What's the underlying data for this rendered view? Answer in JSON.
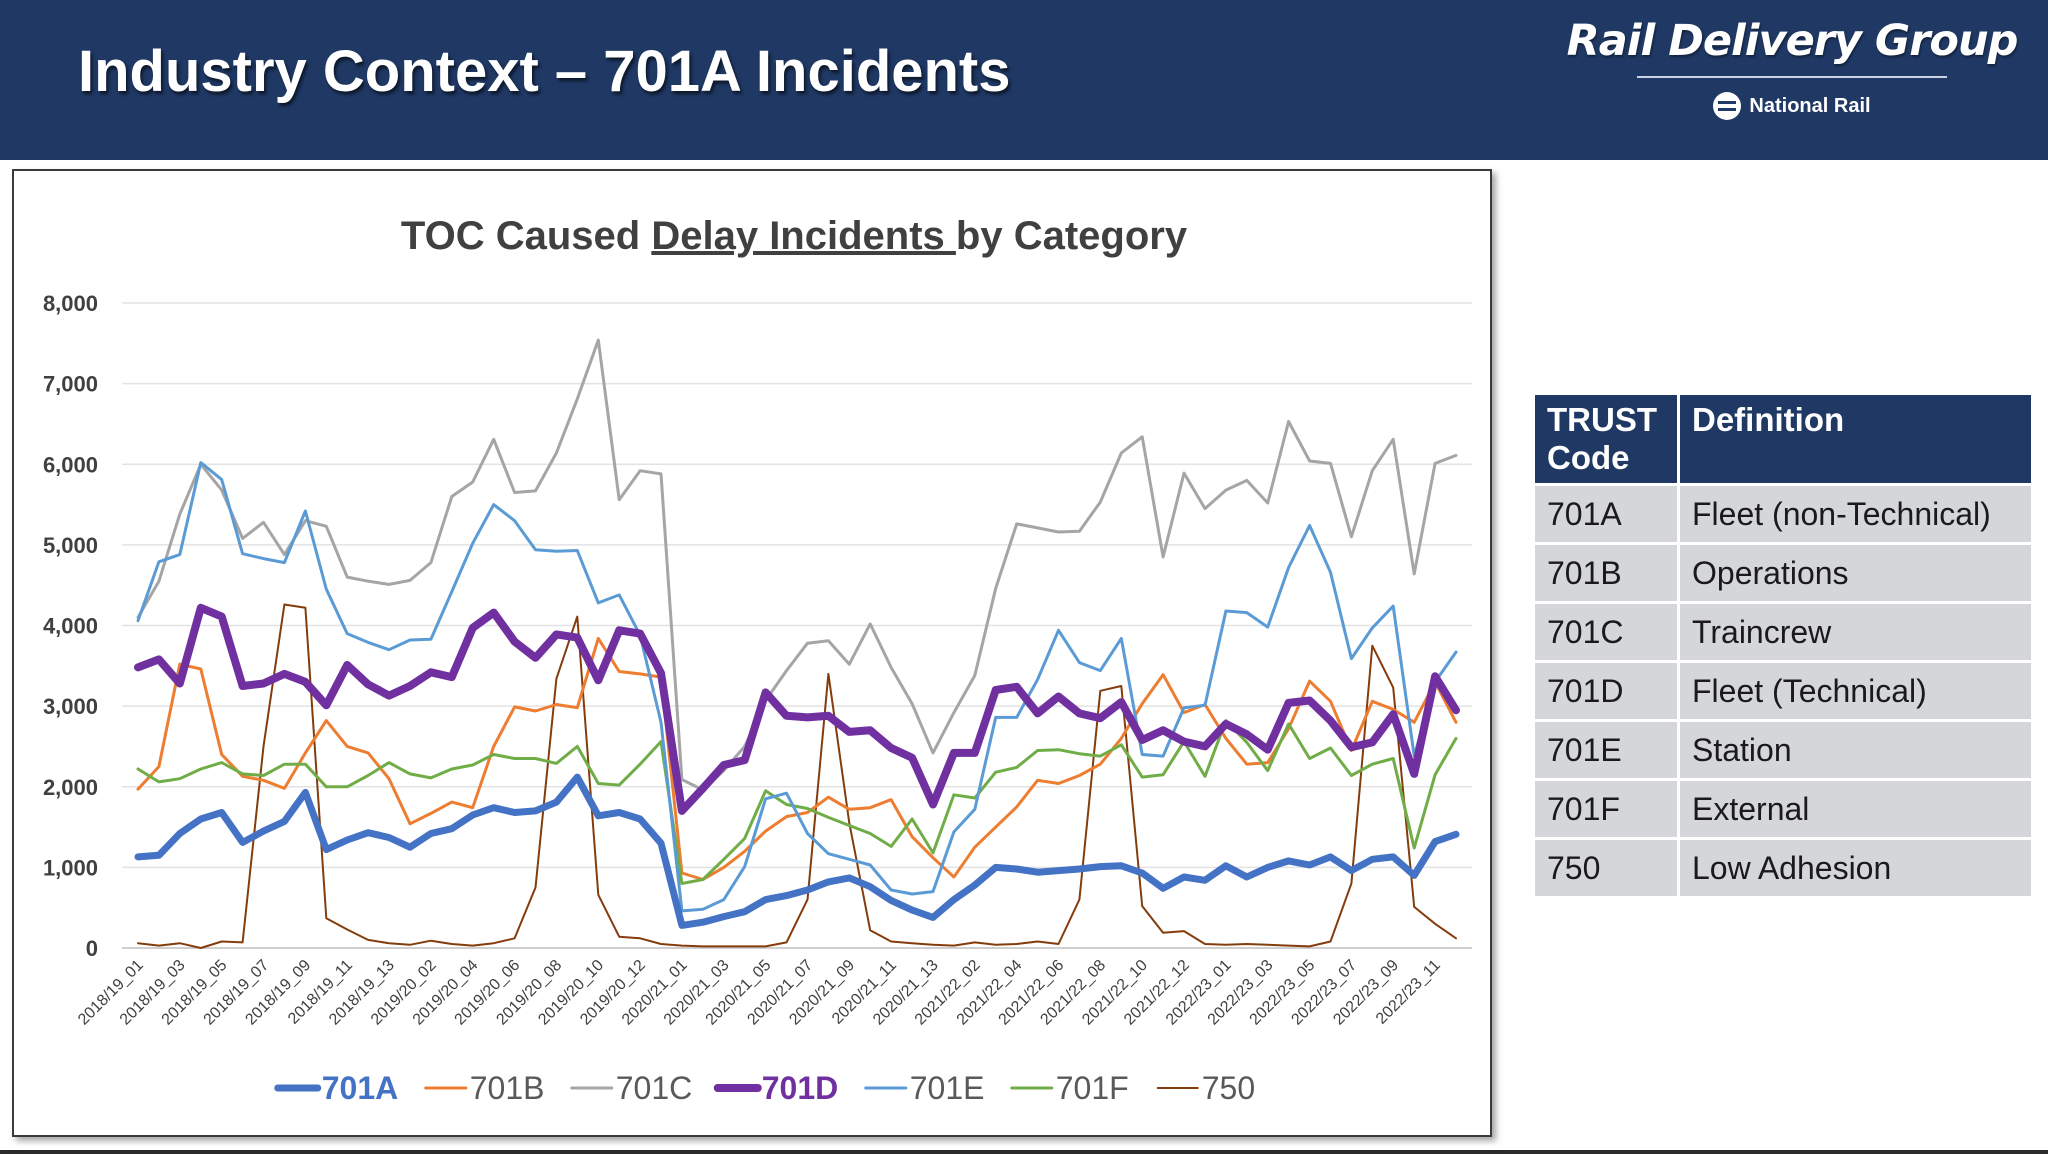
{
  "header": {
    "title": "Industry Context – 701A Incidents",
    "logo_main": "Rail Delivery Group",
    "logo_sub": "National Rail",
    "bg_color": "#1f3864"
  },
  "chart_data": {
    "type": "line",
    "title_prefix": "TOC Caused ",
    "title_underlined": "Delay Incidents ",
    "title_suffix": "by Category",
    "ylim": [
      0,
      8000
    ],
    "yticks": [
      "0",
      "1,000",
      "2,000",
      "3,000",
      "4,000",
      "5,000",
      "6,000",
      "7,000",
      "8,000"
    ],
    "grid": true,
    "legend_position": "bottom",
    "x_tick_labels": [
      "2018/19_01",
      "2018/19_03",
      "2018/19_05",
      "2018/19_07",
      "2018/19_09",
      "2018/19_11",
      "2018/19_13",
      "2019/20_02",
      "2019/20_04",
      "2019/20_06",
      "2019/20_08",
      "2019/20_10",
      "2019/20_12",
      "2020/21_01",
      "2020/21_03",
      "2020/21_05",
      "2020/21_07",
      "2020/21_09",
      "2020/21_11",
      "2020/21_13",
      "2021/22_02",
      "2021/22_04",
      "2021/22_06",
      "2021/22_08",
      "2021/22_10",
      "2021/22_12",
      "2022/23_01",
      "2022/23_03",
      "2022/23_05",
      "2022/23_07",
      "2022/23_09",
      "2022/23_11"
    ],
    "series": [
      {
        "name": "701A",
        "color": "#4472c4",
        "width": 7,
        "bold": true,
        "values": [
          1130,
          1150,
          1420,
          1600,
          1680,
          1310,
          1450,
          1570,
          1930,
          1220,
          1340,
          1430,
          1370,
          1250,
          1420,
          1480,
          1650,
          1740,
          1680,
          1700,
          1810,
          2120,
          1640,
          1680,
          1600,
          1300,
          280,
          320,
          390,
          450,
          600,
          650,
          720,
          820,
          870,
          760,
          590,
          470,
          380,
          600,
          780,
          1000,
          980,
          940,
          960,
          980,
          1010,
          1020,
          930,
          740,
          880,
          840,
          1020,
          880,
          1000,
          1080,
          1030,
          1130,
          960,
          1100,
          1130,
          900,
          1320,
          1410
        ]
      },
      {
        "name": "701B",
        "color": "#ed7d31",
        "width": 3,
        "bold": false,
        "values": [
          1970,
          2250,
          3520,
          3460,
          2400,
          2130,
          2080,
          1980,
          2420,
          2820,
          2500,
          2420,
          2100,
          1540,
          1670,
          1810,
          1740,
          2500,
          2990,
          2940,
          3020,
          2980,
          3840,
          3430,
          3400,
          3360,
          930,
          850,
          1000,
          1200,
          1450,
          1630,
          1680,
          1870,
          1720,
          1740,
          1840,
          1380,
          1120,
          880,
          1250,
          1500,
          1750,
          2080,
          2040,
          2140,
          2280,
          2600,
          3030,
          3390,
          2920,
          3020,
          2600,
          2280,
          2300,
          2720,
          3310,
          3060,
          2450,
          3060,
          2960,
          2800,
          3300,
          2800
        ]
      },
      {
        "name": "701C",
        "color": "#a5a5a5",
        "width": 3,
        "bold": false,
        "values": [
          4100,
          4550,
          5380,
          6000,
          5680,
          5080,
          5280,
          4880,
          5300,
          5230,
          4600,
          4550,
          4510,
          4560,
          4780,
          5600,
          5780,
          6310,
          5650,
          5670,
          6140,
          6810,
          7540,
          5560,
          5920,
          5880,
          2090,
          1960,
          2200,
          2500,
          3070,
          3440,
          3780,
          3810,
          3520,
          4020,
          3480,
          3030,
          2420,
          2920,
          3380,
          4460,
          5260,
          5210,
          5160,
          5170,
          5530,
          6140,
          6340,
          4850,
          5890,
          5450,
          5680,
          5800,
          5520,
          6530,
          6040,
          6010,
          5100,
          5920,
          6310,
          4640,
          6010,
          6110
        ]
      },
      {
        "name": "701D",
        "color": "#7030a0",
        "width": 8,
        "bold": true,
        "values": [
          3480,
          3580,
          3280,
          4220,
          4110,
          3250,
          3280,
          3400,
          3300,
          3010,
          3510,
          3270,
          3130,
          3250,
          3420,
          3360,
          3970,
          4160,
          3800,
          3600,
          3890,
          3850,
          3320,
          3940,
          3900,
          3410,
          1700,
          1980,
          2270,
          2330,
          3170,
          2880,
          2860,
          2880,
          2680,
          2700,
          2480,
          2360,
          1780,
          2420,
          2420,
          3200,
          3240,
          2910,
          3120,
          2910,
          2850,
          3050,
          2580,
          2700,
          2560,
          2500,
          2780,
          2650,
          2460,
          3040,
          3070,
          2820,
          2490,
          2550,
          2900,
          2160,
          3370,
          2950
        ]
      },
      {
        "name": "701E",
        "color": "#5b9bd5",
        "width": 3,
        "bold": false,
        "values": [
          4060,
          4790,
          4880,
          6020,
          5810,
          4890,
          4830,
          4780,
          5420,
          4450,
          3900,
          3790,
          3700,
          3820,
          3830,
          4420,
          5020,
          5500,
          5300,
          4940,
          4920,
          4930,
          4280,
          4380,
          3880,
          2800,
          460,
          480,
          600,
          1010,
          1850,
          1920,
          1420,
          1170,
          1100,
          1030,
          720,
          670,
          700,
          1440,
          1720,
          2860,
          2860,
          3330,
          3940,
          3540,
          3440,
          3840,
          2400,
          2380,
          2980,
          3010,
          4180,
          4160,
          3980,
          4720,
          5240,
          4660,
          3590,
          3970,
          4240,
          2380,
          3300,
          3670
        ]
      },
      {
        "name": "701F",
        "color": "#70ad47",
        "width": 3,
        "bold": false,
        "values": [
          2220,
          2060,
          2100,
          2220,
          2300,
          2160,
          2140,
          2280,
          2280,
          2000,
          2000,
          2140,
          2300,
          2160,
          2110,
          2220,
          2270,
          2400,
          2350,
          2350,
          2290,
          2500,
          2040,
          2020,
          2280,
          2560,
          800,
          850,
          1100,
          1360,
          1950,
          1780,
          1730,
          1620,
          1520,
          1420,
          1260,
          1600,
          1180,
          1900,
          1860,
          2180,
          2240,
          2450,
          2460,
          2410,
          2380,
          2520,
          2120,
          2150,
          2560,
          2130,
          2820,
          2550,
          2200,
          2780,
          2350,
          2480,
          2140,
          2280,
          2350,
          1240,
          2150,
          2600
        ]
      },
      {
        "name": "750",
        "color": "#843c0c",
        "width": 2,
        "bold": false,
        "values": [
          60,
          30,
          60,
          0,
          80,
          70,
          2500,
          4260,
          4220,
          370,
          230,
          100,
          60,
          40,
          90,
          50,
          30,
          60,
          120,
          750,
          3340,
          4110,
          660,
          140,
          120,
          50,
          30,
          20,
          20,
          20,
          20,
          70,
          600,
          3400,
          1550,
          220,
          80,
          60,
          40,
          30,
          70,
          40,
          50,
          80,
          50,
          600,
          3190,
          3250,
          520,
          190,
          210,
          50,
          40,
          50,
          40,
          30,
          20,
          80,
          800,
          3750,
          3230,
          510,
          300,
          120
        ]
      }
    ]
  },
  "table": {
    "headers": [
      "TRUST Code",
      "Definition"
    ],
    "rows": [
      [
        "701A",
        "Fleet (non-Technical)"
      ],
      [
        "701B",
        "Operations"
      ],
      [
        "701C",
        "Traincrew"
      ],
      [
        "701D",
        "Fleet (Technical)"
      ],
      [
        "701E",
        "Station"
      ],
      [
        "701F",
        "External"
      ],
      [
        "750",
        "Low Adhesion"
      ]
    ]
  }
}
